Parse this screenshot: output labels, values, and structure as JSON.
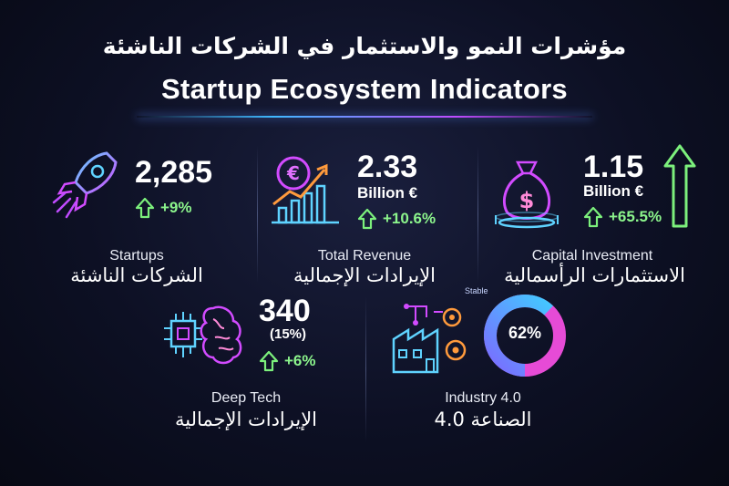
{
  "header": {
    "title_ar": "مؤشرات النمو والاستثمار في الشركات الناشئة",
    "title_en": "Startup Ecosystem Indicators"
  },
  "cards": {
    "startups": {
      "value": "2,285",
      "delta": "+9%",
      "label_en": "Startups",
      "label_ar": "الشركات الناشئة",
      "icon": "rocket-icon"
    },
    "revenue": {
      "value": "2.33",
      "unit": "Billion €",
      "delta": "+10.6%",
      "label_en": "Total Revenue",
      "label_ar": "الإيرادات الإجمالية",
      "icon": "revenue-chart-icon"
    },
    "investment": {
      "value": "1.15",
      "unit": "Billion €",
      "delta": "+65.5%",
      "label_en": "Capital Investment",
      "label_ar": "الاستثمارات الرأسمالية",
      "icon": "money-bag-icon"
    },
    "deeptech": {
      "value": "340",
      "share": "(15%)",
      "delta": "+6%",
      "label_en": "Deep Tech",
      "label_ar": "الإيرادات الإجمالية",
      "icon": "ai-brain-chip-icon"
    },
    "industry": {
      "value": "62%",
      "status": "Stable",
      "percent": 62,
      "label_en": "Industry 4.0",
      "label_ar": "الصناعة 4.0",
      "icon": "factory-icon"
    }
  },
  "colors": {
    "accent_green": "#8cf58c",
    "accent_cyan": "#3fd0ff",
    "accent_magenta": "#d24bff"
  }
}
